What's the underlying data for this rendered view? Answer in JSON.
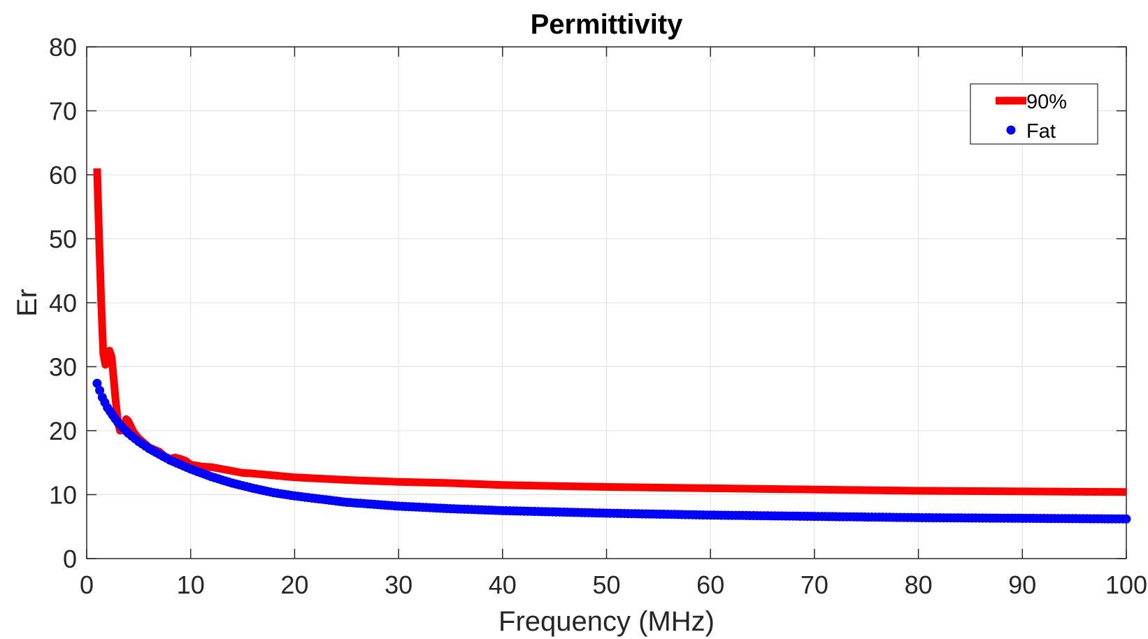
{
  "chart_data": {
    "type": "line",
    "title": "Permittivity",
    "xlabel": "Frequency (MHz)",
    "ylabel": "Er",
    "xlim": [
      0,
      100
    ],
    "ylim": [
      0,
      80
    ],
    "xticks": [
      0,
      10,
      20,
      30,
      40,
      50,
      60,
      70,
      80,
      90,
      100
    ],
    "yticks": [
      0,
      10,
      20,
      30,
      40,
      50,
      60,
      70,
      80
    ],
    "grid": true,
    "legend_position": "top-right",
    "series": [
      {
        "name": "90%",
        "color": "#ff0000",
        "style": "line",
        "points": [
          [
            1.0,
            61.0
          ],
          [
            1.2,
            50.0
          ],
          [
            1.4,
            40.0
          ],
          [
            1.6,
            32.0
          ],
          [
            1.8,
            30.3
          ],
          [
            2.0,
            31.0
          ],
          [
            2.2,
            32.5
          ],
          [
            2.4,
            31.5
          ],
          [
            2.6,
            28.0
          ],
          [
            2.8,
            24.5
          ],
          [
            3.0,
            21.5
          ],
          [
            3.2,
            20.0
          ],
          [
            3.5,
            20.3
          ],
          [
            3.8,
            21.8
          ],
          [
            4.0,
            21.5
          ],
          [
            4.5,
            19.8
          ],
          [
            5.0,
            18.8
          ],
          [
            6.0,
            17.4
          ],
          [
            7.0,
            16.7
          ],
          [
            7.5,
            16.0
          ],
          [
            8.0,
            15.6
          ],
          [
            8.5,
            15.8
          ],
          [
            9.0,
            15.6
          ],
          [
            9.5,
            15.3
          ],
          [
            10.0,
            14.7
          ],
          [
            11.0,
            14.4
          ],
          [
            12.0,
            14.3
          ],
          [
            13.0,
            14.0
          ],
          [
            14.0,
            13.7
          ],
          [
            15.0,
            13.4
          ],
          [
            16.0,
            13.3
          ],
          [
            18.0,
            13.0
          ],
          [
            20.0,
            12.7
          ],
          [
            25.0,
            12.3
          ],
          [
            30.0,
            12.0
          ],
          [
            35.0,
            11.8
          ],
          [
            40.0,
            11.5
          ],
          [
            50.0,
            11.2
          ],
          [
            60.0,
            11.0
          ],
          [
            70.0,
            10.8
          ],
          [
            80.0,
            10.6
          ],
          [
            90.0,
            10.5
          ],
          [
            100.0,
            10.4
          ]
        ]
      },
      {
        "name": "Fat",
        "color": "#0000ff",
        "style": "markers",
        "points": [
          [
            1.0,
            27.4
          ],
          [
            1.5,
            25.2
          ],
          [
            2.0,
            23.6
          ],
          [
            2.5,
            22.4
          ],
          [
            3.0,
            21.3
          ],
          [
            3.5,
            20.4
          ],
          [
            4.0,
            19.6
          ],
          [
            5.0,
            18.3
          ],
          [
            6.0,
            17.2
          ],
          [
            7.0,
            16.3
          ],
          [
            8.0,
            15.4
          ],
          [
            9.0,
            14.7
          ],
          [
            10.0,
            14.0
          ],
          [
            12.0,
            12.8
          ],
          [
            14.0,
            11.8
          ],
          [
            16.0,
            11.0
          ],
          [
            18.0,
            10.3
          ],
          [
            20.0,
            9.8
          ],
          [
            25.0,
            8.8
          ],
          [
            30.0,
            8.2
          ],
          [
            35.0,
            7.8
          ],
          [
            40.0,
            7.5
          ],
          [
            50.0,
            7.1
          ],
          [
            60.0,
            6.8
          ],
          [
            70.0,
            6.6
          ],
          [
            80.0,
            6.4
          ],
          [
            90.0,
            6.3
          ],
          [
            100.0,
            6.2
          ]
        ]
      }
    ]
  }
}
